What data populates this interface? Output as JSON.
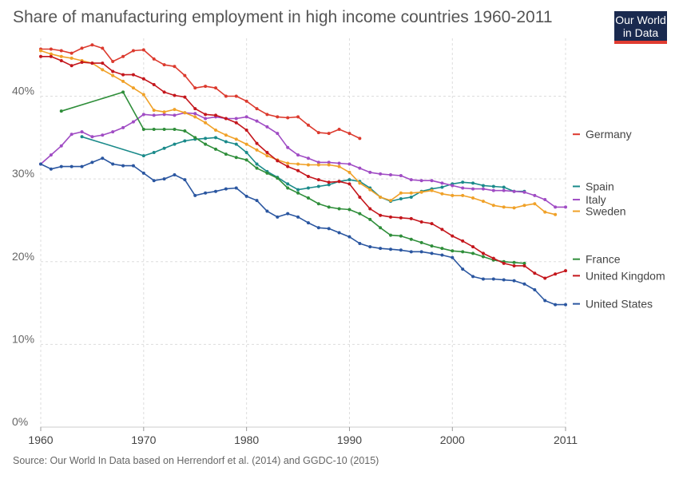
{
  "header": {
    "title": "Share of manufacturing employment in high income countries 1960-2011"
  },
  "logo": {
    "line1": "Our World",
    "line2": "in Data"
  },
  "footer": {
    "source": "Source: Our World In Data based on Herrendorf et al. (2014) and GGDC-10 (2015)"
  },
  "chart_data": {
    "type": "line",
    "title": "Share of manufacturing employment in high income countries 1960-2011",
    "xlabel": "",
    "ylabel": "",
    "xlim": [
      1960,
      2011
    ],
    "ylim": [
      0,
      47
    ],
    "x_ticks": [
      "1960",
      "1970",
      "1980",
      "1990",
      "2000",
      "2011"
    ],
    "x_tick_values": [
      1960,
      1970,
      1980,
      1990,
      2000,
      2011
    ],
    "y_ticks": [
      "0%",
      "10%",
      "20%",
      "30%",
      "40%"
    ],
    "y_tick_values": [
      0,
      10,
      20,
      30,
      40
    ],
    "grid": true,
    "legend_position": "right",
    "series": [
      {
        "name": "Germany",
        "color": "#dc3a2e",
        "legend_value": 35.4,
        "x": [
          1960,
          1961,
          1962,
          1963,
          1964,
          1965,
          1966,
          1967,
          1968,
          1969,
          1970,
          1971,
          1972,
          1973,
          1974,
          1975,
          1976,
          1977,
          1978,
          1979,
          1980,
          1981,
          1982,
          1983,
          1984,
          1985,
          1986,
          1987,
          1988,
          1989,
          1990,
          1991
        ],
        "y": [
          45.7,
          45.7,
          45.5,
          45.2,
          45.8,
          46.2,
          45.8,
          44.2,
          44.8,
          45.5,
          45.6,
          44.5,
          43.8,
          43.6,
          42.5,
          41.0,
          41.2,
          41.0,
          40.0,
          40.0,
          39.4,
          38.5,
          37.8,
          37.5,
          37.4,
          37.5,
          36.5,
          35.6,
          35.5,
          36.0,
          35.5,
          34.9
        ]
      },
      {
        "name": "Spain",
        "color": "#1a8a8a",
        "legend_value": 29.1,
        "x": [
          1964,
          1970,
          1971,
          1972,
          1973,
          1974,
          1975,
          1976,
          1977,
          1978,
          1979,
          1980,
          1981,
          1982,
          1983,
          1984,
          1985,
          1986,
          1987,
          1988,
          1989,
          1990,
          1991,
          1992,
          1993,
          1994,
          1995,
          1996,
          1997,
          1998,
          1999,
          2000,
          2001,
          2002,
          2003,
          2004,
          2005,
          2006,
          2007
        ],
        "y": [
          35.1,
          32.8,
          33.2,
          33.7,
          34.2,
          34.6,
          34.8,
          34.9,
          35.0,
          34.5,
          34.2,
          33.2,
          31.8,
          30.9,
          30.2,
          29.4,
          28.7,
          28.9,
          29.1,
          29.3,
          29.7,
          29.9,
          29.7,
          28.9,
          27.8,
          27.3,
          27.6,
          27.8,
          28.5,
          28.8,
          29.0,
          29.4,
          29.6,
          29.5,
          29.2,
          29.1,
          29.0,
          28.5,
          28.5
        ]
      },
      {
        "name": "Italy",
        "color": "#a04cc4",
        "legend_value": 27.5,
        "x": [
          1960,
          1961,
          1962,
          1963,
          1964,
          1965,
          1966,
          1967,
          1968,
          1969,
          1970,
          1971,
          1972,
          1973,
          1974,
          1975,
          1976,
          1977,
          1978,
          1979,
          1980,
          1981,
          1982,
          1983,
          1984,
          1985,
          1986,
          1987,
          1988,
          1989,
          1990,
          1991,
          1992,
          1993,
          1994,
          1995,
          1996,
          1997,
          1998,
          1999,
          2000,
          2001,
          2002,
          2003,
          2004,
          2005,
          2006,
          2007,
          2008,
          2009,
          2010,
          2011
        ],
        "y": [
          31.8,
          32.9,
          34.0,
          35.4,
          35.7,
          35.1,
          35.3,
          35.7,
          36.2,
          36.9,
          37.8,
          37.7,
          37.8,
          37.7,
          38.0,
          37.9,
          37.3,
          37.5,
          37.3,
          37.3,
          37.5,
          37.0,
          36.3,
          35.5,
          33.8,
          32.9,
          32.5,
          32.0,
          32.0,
          31.9,
          31.8,
          31.3,
          30.8,
          30.6,
          30.5,
          30.4,
          29.9,
          29.8,
          29.8,
          29.5,
          29.2,
          28.9,
          28.8,
          28.8,
          28.6,
          28.6,
          28.5,
          28.4,
          28.0,
          27.5,
          26.6,
          26.6
        ]
      },
      {
        "name": "Sweden",
        "color": "#f0a128",
        "legend_value": 26.1,
        "x": [
          1960,
          1961,
          1962,
          1963,
          1964,
          1965,
          1966,
          1967,
          1968,
          1969,
          1970,
          1971,
          1972,
          1973,
          1974,
          1975,
          1976,
          1977,
          1978,
          1979,
          1980,
          1981,
          1982,
          1983,
          1984,
          1985,
          1986,
          1987,
          1988,
          1989,
          1990,
          1991,
          1992,
          1993,
          1994,
          1995,
          1996,
          1997,
          1998,
          1999,
          2000,
          2001,
          2002,
          2003,
          2004,
          2005,
          2006,
          2007,
          2008,
          2009,
          2010
        ],
        "y": [
          45.5,
          45.1,
          44.8,
          44.6,
          44.3,
          44.0,
          43.2,
          42.5,
          41.8,
          41.0,
          40.2,
          38.3,
          38.1,
          38.4,
          38.0,
          37.5,
          36.8,
          35.9,
          35.3,
          34.8,
          34.2,
          33.5,
          32.8,
          32.3,
          31.9,
          31.8,
          31.7,
          31.7,
          31.7,
          31.5,
          30.8,
          29.5,
          28.7,
          27.8,
          27.4,
          28.3,
          28.3,
          28.4,
          28.6,
          28.2,
          28.0,
          28.0,
          27.7,
          27.3,
          26.8,
          26.6,
          26.5,
          26.8,
          27.0,
          26.0,
          25.7
        ]
      },
      {
        "name": "France",
        "color": "#2f8e3a",
        "legend_value": 20.3,
        "x": [
          1962,
          1968,
          1970,
          1971,
          1972,
          1973,
          1974,
          1975,
          1976,
          1977,
          1978,
          1979,
          1980,
          1981,
          1982,
          1983,
          1984,
          1985,
          1986,
          1987,
          1988,
          1989,
          1990,
          1991,
          1992,
          1993,
          1994,
          1995,
          1996,
          1997,
          1998,
          1999,
          2000,
          2001,
          2002,
          2003,
          2004,
          2005,
          2006,
          2007
        ],
        "y": [
          38.2,
          40.5,
          36.0,
          36.0,
          36.0,
          36.0,
          35.8,
          35.0,
          34.2,
          33.6,
          33.0,
          32.6,
          32.3,
          31.3,
          30.7,
          30.1,
          28.9,
          28.3,
          27.7,
          27.0,
          26.6,
          26.4,
          26.3,
          25.8,
          25.1,
          24.1,
          23.2,
          23.1,
          22.7,
          22.3,
          21.9,
          21.6,
          21.3,
          21.2,
          21.0,
          20.6,
          20.2,
          20.0,
          19.9,
          19.8
        ]
      },
      {
        "name": "United Kingdom",
        "color": "#c4161c",
        "legend_value": 18.3,
        "x": [
          1960,
          1961,
          1962,
          1963,
          1964,
          1965,
          1966,
          1967,
          1968,
          1969,
          1970,
          1971,
          1972,
          1973,
          1974,
          1975,
          1976,
          1977,
          1978,
          1979,
          1980,
          1981,
          1982,
          1983,
          1984,
          1985,
          1986,
          1987,
          1988,
          1989,
          1990,
          1991,
          1992,
          1993,
          1994,
          1995,
          1996,
          1997,
          1998,
          1999,
          2000,
          2001,
          2002,
          2003,
          2004,
          2005,
          2006,
          2007,
          2008,
          2009,
          2010,
          2011
        ],
        "y": [
          44.8,
          44.8,
          44.3,
          43.7,
          44.1,
          44.0,
          44.0,
          43.0,
          42.6,
          42.6,
          42.1,
          41.4,
          40.5,
          40.1,
          39.9,
          38.5,
          37.8,
          37.7,
          37.3,
          36.8,
          35.9,
          34.3,
          33.2,
          32.2,
          31.5,
          31.0,
          30.3,
          29.9,
          29.6,
          29.7,
          29.4,
          27.8,
          26.4,
          25.6,
          25.4,
          25.3,
          25.2,
          24.8,
          24.6,
          23.9,
          23.1,
          22.5,
          21.8,
          21.0,
          20.4,
          19.8,
          19.5,
          19.5,
          18.6,
          18.0,
          18.5,
          18.9
        ]
      },
      {
        "name": "United States",
        "color": "#2a56a0",
        "legend_value": 14.9,
        "x": [
          1960,
          1961,
          1962,
          1963,
          1964,
          1965,
          1966,
          1967,
          1968,
          1969,
          1970,
          1971,
          1972,
          1973,
          1974,
          1975,
          1976,
          1977,
          1978,
          1979,
          1980,
          1981,
          1982,
          1983,
          1984,
          1985,
          1986,
          1987,
          1988,
          1989,
          1990,
          1991,
          1992,
          1993,
          1994,
          1995,
          1996,
          1997,
          1998,
          1999,
          2000,
          2001,
          2002,
          2003,
          2004,
          2005,
          2006,
          2007,
          2008,
          2009,
          2010,
          2011
        ],
        "y": [
          31.8,
          31.2,
          31.5,
          31.5,
          31.5,
          32.0,
          32.5,
          31.8,
          31.6,
          31.6,
          30.7,
          29.8,
          30.0,
          30.5,
          29.9,
          28.0,
          28.3,
          28.5,
          28.8,
          28.9,
          27.9,
          27.4,
          26.1,
          25.4,
          25.8,
          25.4,
          24.7,
          24.1,
          24.0,
          23.5,
          23.0,
          22.2,
          21.8,
          21.6,
          21.5,
          21.4,
          21.2,
          21.2,
          21.0,
          20.8,
          20.5,
          19.1,
          18.2,
          17.9,
          17.9,
          17.8,
          17.7,
          17.3,
          16.6,
          15.3,
          14.8,
          14.8
        ]
      }
    ]
  }
}
